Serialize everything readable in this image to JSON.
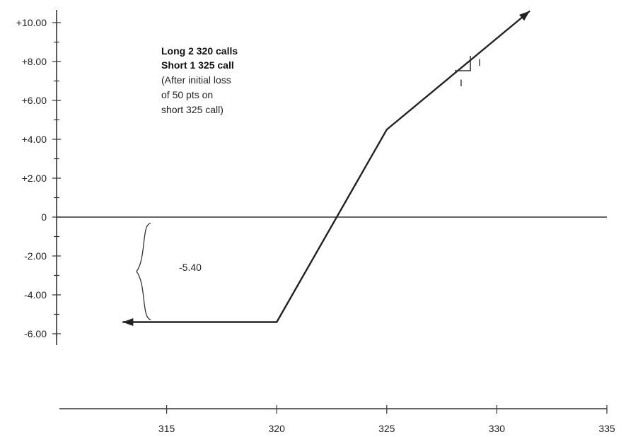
{
  "chart_data": {
    "type": "line",
    "title": "",
    "xlabel": "",
    "ylabel": "",
    "xlim": [
      310,
      335
    ],
    "ylim": [
      -6.4,
      10.6
    ],
    "y_ticks": [
      {
        "value": 10,
        "label": "+10.00"
      },
      {
        "value": 8,
        "label": "+8.00"
      },
      {
        "value": 6,
        "label": "+6.00"
      },
      {
        "value": 4,
        "label": "+4.00"
      },
      {
        "value": 2,
        "label": "+2.00"
      },
      {
        "value": 0,
        "label": "0"
      },
      {
        "value": -2,
        "label": "-2.00"
      },
      {
        "value": -4,
        "label": "-4.00"
      },
      {
        "value": -6,
        "label": "-6.00"
      }
    ],
    "x_ticks": [
      {
        "value": 315,
        "label": "315"
      },
      {
        "value": 320,
        "label": "320"
      },
      {
        "value": 325,
        "label": "325"
      },
      {
        "value": 330,
        "label": "330"
      },
      {
        "value": 335,
        "label": "335"
      }
    ],
    "series": [
      {
        "x": [
          313,
          320,
          325,
          331.5
        ],
        "y": [
          -5.4,
          -5.4,
          4.5,
          10.6
        ]
      }
    ],
    "annotations": {
      "position_lines": [
        "Long 2 320 calls",
        "Short 1 325 call"
      ],
      "note_lines": [
        "(After initial loss",
        "of 50 pts on",
        "short 325 call)"
      ],
      "max_loss_label": "-5.40",
      "slope_rise_label": "I",
      "slope_run_label": "I"
    },
    "grid": false,
    "colors": {
      "line": "#222222",
      "axis": "#333333",
      "text": "#222222"
    }
  }
}
